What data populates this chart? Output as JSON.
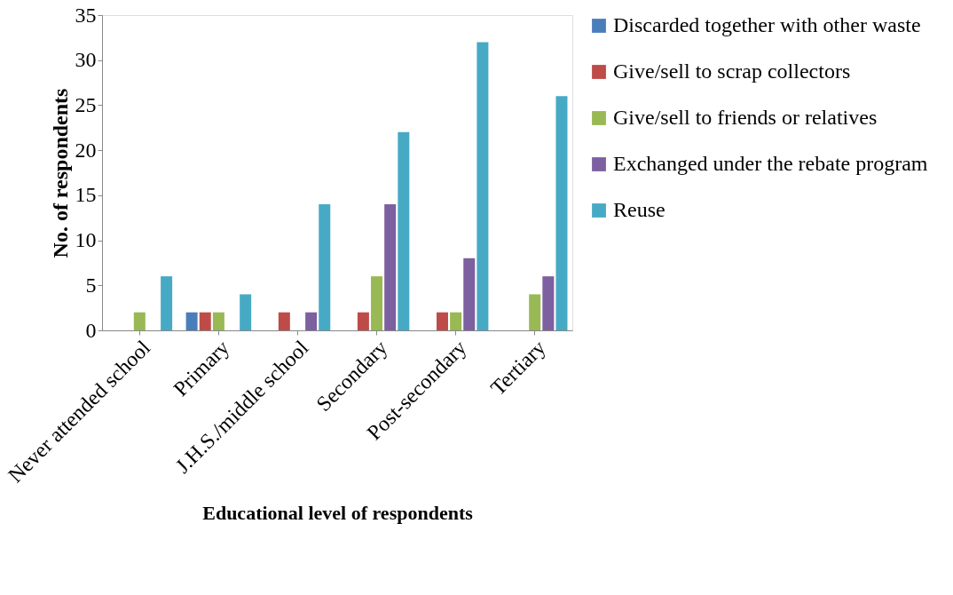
{
  "chart_data": {
    "type": "bar",
    "xlabel": "Educational level of respondents",
    "ylabel": "No. of respondents",
    "categories": [
      "Never attended school",
      "Primary",
      "J.H.S./middle school",
      "Secondary",
      "Post-secondary",
      "Tertiary"
    ],
    "series": [
      {
        "name": "Discarded together with other waste",
        "color": "#4a7ebb",
        "values": [
          0,
          2,
          0,
          0,
          0,
          0
        ]
      },
      {
        "name": "Give/sell to scrap collectors",
        "color": "#be4b48",
        "values": [
          0,
          2,
          2,
          2,
          2,
          0
        ]
      },
      {
        "name": "Give/sell to friends or relatives",
        "color": "#98b954",
        "values": [
          2,
          2,
          0,
          6,
          2,
          4
        ]
      },
      {
        "name": "Exchanged under the rebate program",
        "color": "#7d60a0",
        "values": [
          0,
          0,
          2,
          14,
          8,
          6
        ]
      },
      {
        "name": "Reuse",
        "color": "#46aac5",
        "values": [
          6,
          4,
          14,
          22,
          32,
          26
        ]
      }
    ],
    "ylim": [
      0,
      35
    ],
    "yticks": [
      0,
      5,
      10,
      15,
      20,
      25,
      30,
      35
    ],
    "grid": false,
    "legend": "right"
  }
}
